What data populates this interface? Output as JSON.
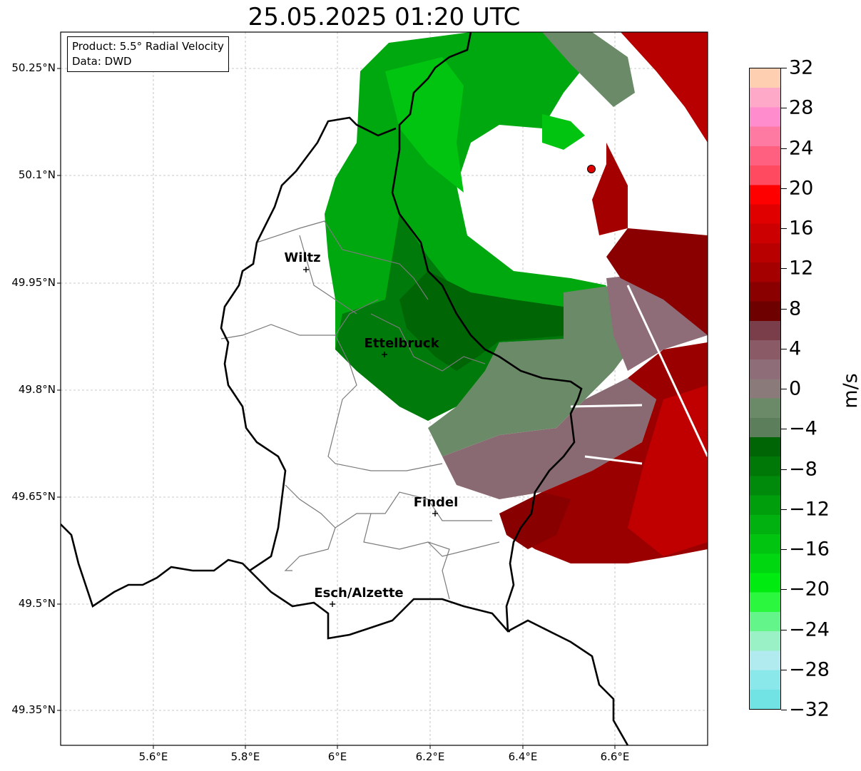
{
  "title": "25.05.2025 01:20 UTC",
  "info_box": {
    "product": "Product: 5.5° Radial Velocity",
    "source": "Data: DWD"
  },
  "axes": {
    "lat_ticks": [
      "50.25°N",
      "50.1°N",
      "49.95°N",
      "49.8°N",
      "49.65°N",
      "49.5°N",
      "49.35°N"
    ],
    "lon_ticks": [
      "5.6°E",
      "5.8°E",
      "6°E",
      "6.2°E",
      "6.4°E",
      "6.6°E"
    ],
    "grid": true
  },
  "cities": [
    {
      "name": "Wiltz"
    },
    {
      "name": "Ettelbruck"
    },
    {
      "name": "Findel"
    },
    {
      "name": "Esch/Alzette"
    }
  ],
  "radar_site_marker": "red-circle",
  "colorbar": {
    "unit": "m/s",
    "ticks": [
      "32",
      "28",
      "24",
      "20",
      "16",
      "12",
      "8",
      "4",
      "0",
      "−4",
      "−8",
      "−12",
      "−16",
      "−20",
      "−24",
      "−28",
      "−32"
    ],
    "range": [
      -32,
      32
    ],
    "colors": [
      "#71e3e5",
      "#8ae8ea",
      "#b1ebef",
      "#9af1c6",
      "#64f58a",
      "#2bf73f",
      "#00eb10",
      "#00d710",
      "#00c410",
      "#00b10f",
      "#009d0d",
      "#008a0b",
      "#007808",
      "#006505",
      "#5c7e5a",
      "#6b8a67",
      "#8a7a7a",
      "#8e6c78",
      "#8a5a66",
      "#7a3e4a",
      "#6e0000",
      "#8a0000",
      "#a40000",
      "#b80000",
      "#cc0000",
      "#e00000",
      "#ff0000",
      "#ff4a60",
      "#ff6080",
      "#ff7aa2",
      "#ff8ccc",
      "#ffa9c8",
      "#ffcfb1"
    ]
  }
}
